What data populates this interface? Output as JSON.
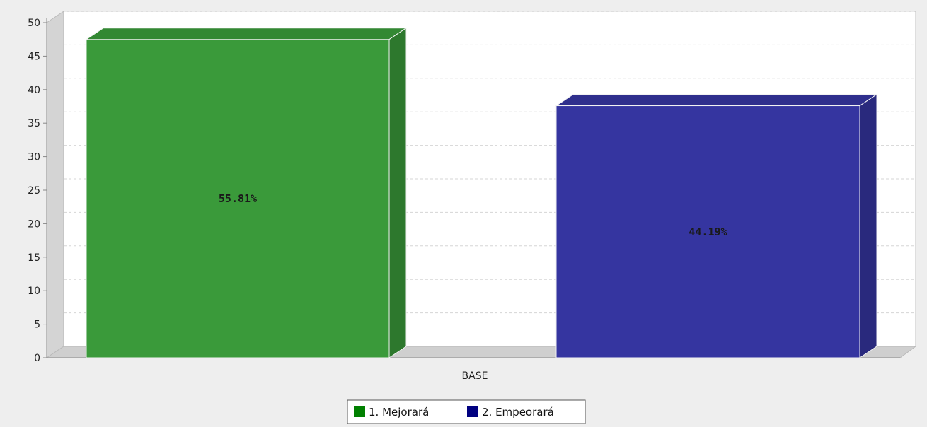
{
  "chart_data": {
    "type": "bar",
    "categories": [
      "BASE"
    ],
    "series": [
      {
        "name": "1. Mejorará",
        "values": [
          47.5
        ],
        "label": "55.81%"
      },
      {
        "name": "2. Empeorará",
        "values": [
          37.6
        ],
        "label": "44.19%"
      }
    ],
    "title": "",
    "xlabel": "",
    "ylabel": "",
    "ylim": [
      0,
      50
    ],
    "yticks": [
      "0",
      "5",
      "10",
      "15",
      "20",
      "25",
      "30",
      "35",
      "40",
      "45",
      "50"
    ],
    "grid": true,
    "legend": "bottom-center",
    "render": "3d"
  },
  "colors": {
    "series": [
      "#3a9a3a",
      "#3535a0"
    ],
    "legend": [
      "#008000",
      "#000080"
    ],
    "background": "#eeeeee",
    "plot": "#ffffff"
  }
}
